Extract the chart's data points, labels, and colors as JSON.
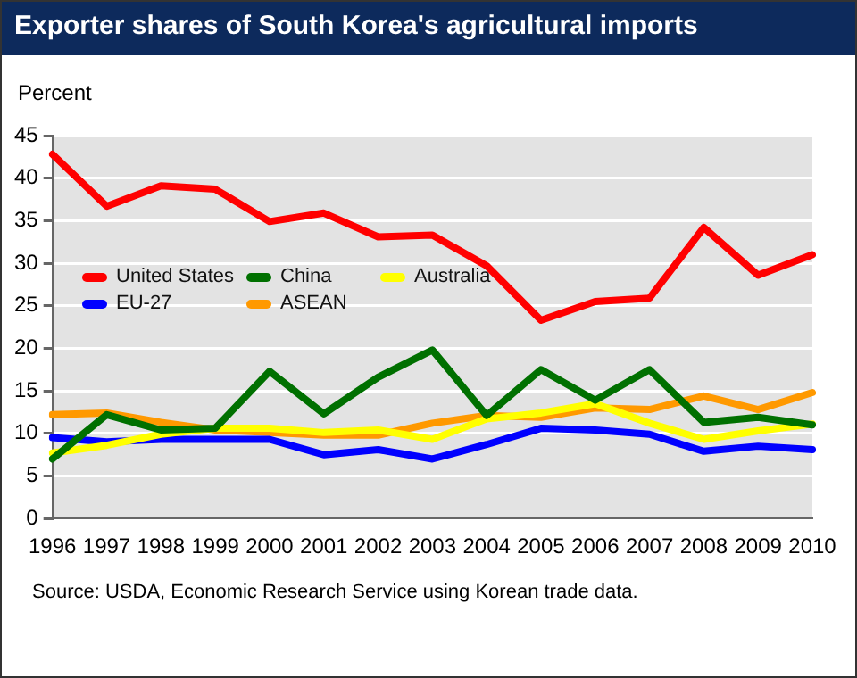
{
  "chart_data": {
    "type": "line",
    "title": "Exporter shares of South Korea's agricultural imports",
    "ylabel": "Percent",
    "categories": [
      "1996",
      "1997",
      "1998",
      "1999",
      "2000",
      "2001",
      "2002",
      "2003",
      "2004",
      "2005",
      "2006",
      "2007",
      "2008",
      "2009",
      "2010"
    ],
    "series": [
      {
        "name": "United States",
        "color": "#ff0000",
        "values": [
          42.8,
          36.7,
          39.1,
          38.7,
          34.9,
          35.9,
          33.1,
          33.3,
          29.7,
          23.3,
          25.5,
          25.9,
          34.2,
          28.6,
          31.0
        ]
      },
      {
        "name": "China",
        "color": "#007000",
        "values": [
          7.0,
          12.2,
          10.4,
          10.6,
          17.3,
          12.3,
          16.6,
          19.8,
          12.1,
          17.5,
          13.9,
          17.5,
          11.3,
          11.9,
          11.0
        ]
      },
      {
        "name": "Australia",
        "color": "#ffff00",
        "values": [
          7.7,
          8.6,
          9.9,
          10.6,
          10.6,
          10.1,
          10.4,
          9.3,
          11.7,
          12.4,
          13.5,
          11.2,
          9.3,
          10.3,
          11.1
        ]
      },
      {
        "name": "EU-27",
        "color": "#0000ff",
        "values": [
          9.5,
          9.0,
          9.3,
          9.3,
          9.3,
          7.5,
          8.1,
          7.0,
          8.7,
          10.6,
          10.4,
          9.9,
          7.9,
          8.5,
          8.1
        ]
      },
      {
        "name": "ASEAN",
        "color": "#ff9900",
        "values": [
          12.2,
          12.4,
          11.3,
          10.4,
          10.1,
          9.8,
          9.8,
          11.2,
          12.1,
          11.9,
          13.0,
          12.8,
          14.4,
          12.8,
          14.8
        ]
      }
    ],
    "ylim": [
      0,
      45
    ],
    "yticks": [
      0,
      5,
      10,
      15,
      20,
      25,
      30,
      35,
      40,
      45
    ],
    "grid": "y",
    "legend": "top left",
    "marker": "none",
    "line_style": "solid",
    "annotations": [
      "Source: USDA, Economic Research Service using Korean trade data."
    ]
  }
}
